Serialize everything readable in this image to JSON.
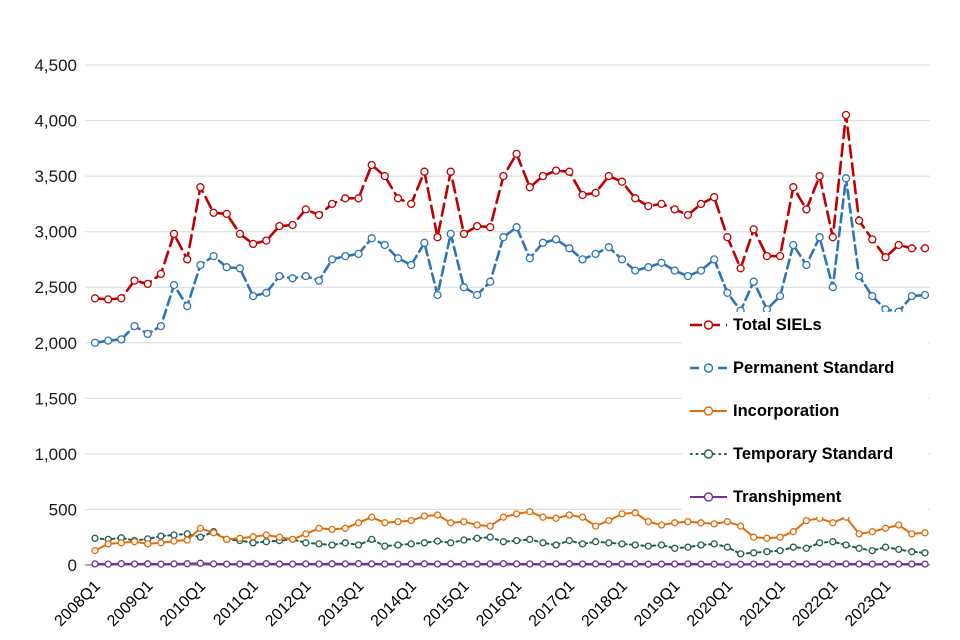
{
  "chart_data": {
    "type": "line",
    "title": "",
    "grid": true,
    "legend_position": "middle-right",
    "y_axis": {
      "min": 0,
      "max": 4500,
      "step": 500
    },
    "x_axis": {
      "tick_every": 4
    },
    "categories": [
      "2008Q1",
      "2008Q2",
      "2008Q3",
      "2008Q4",
      "2009Q1",
      "2009Q2",
      "2009Q3",
      "2009Q4",
      "2010Q1",
      "2010Q2",
      "2010Q3",
      "2010Q4",
      "2011Q1",
      "2011Q2",
      "2011Q3",
      "2011Q4",
      "2012Q1",
      "2012Q2",
      "2012Q3",
      "2012Q4",
      "2013Q1",
      "2013Q2",
      "2013Q3",
      "2013Q4",
      "2014Q1",
      "2014Q2",
      "2014Q3",
      "2014Q4",
      "2015Q1",
      "2015Q2",
      "2015Q3",
      "2015Q4",
      "2016Q1",
      "2016Q2",
      "2016Q3",
      "2016Q4",
      "2017Q1",
      "2017Q2",
      "2017Q3",
      "2017Q4",
      "2018Q1",
      "2018Q2",
      "2018Q3",
      "2018Q4",
      "2019Q1",
      "2019Q2",
      "2019Q3",
      "2019Q4",
      "2020Q1",
      "2020Q2",
      "2020Q3",
      "2020Q4",
      "2021Q1",
      "2021Q2",
      "2021Q3",
      "2021Q4",
      "2022Q1",
      "2022Q2",
      "2022Q3",
      "2022Q4",
      "2023Q1",
      "2023Q2",
      "2023Q3",
      "2023Q4"
    ],
    "series": [
      {
        "name": "Total SIELs",
        "color": "#C00000",
        "dash": "long-dash",
        "width": 2.6,
        "marker_r": 3.5,
        "values": [
          2400,
          2390,
          2400,
          2560,
          2530,
          2620,
          2980,
          2750,
          3400,
          3170,
          3160,
          2980,
          2890,
          2920,
          3050,
          3060,
          3200,
          3150,
          3250,
          3300,
          3300,
          3600,
          3500,
          3300,
          3250,
          3540,
          2950,
          3540,
          2980,
          3050,
          3040,
          3500,
          3700,
          3400,
          3500,
          3550,
          3540,
          3330,
          3350,
          3500,
          3450,
          3300,
          3230,
          3250,
          3200,
          3150,
          3250,
          3310,
          2950,
          2670,
          3020,
          2780,
          2780,
          3400,
          3200,
          3500,
          2950,
          4050,
          3100,
          2930,
          2770,
          2880,
          2850,
          2850
        ]
      },
      {
        "name": "Permanent Standard",
        "color": "#2E75B6",
        "dash": "dash",
        "width": 2.6,
        "marker_r": 3.5,
        "values": [
          2000,
          2020,
          2030,
          2150,
          2080,
          2150,
          2520,
          2330,
          2700,
          2780,
          2680,
          2670,
          2420,
          2450,
          2600,
          2580,
          2600,
          2560,
          2750,
          2780,
          2800,
          2940,
          2880,
          2760,
          2700,
          2900,
          2430,
          2980,
          2500,
          2430,
          2550,
          2950,
          3040,
          2760,
          2900,
          2930,
          2850,
          2750,
          2800,
          2860,
          2750,
          2650,
          2680,
          2720,
          2650,
          2600,
          2650,
          2750,
          2450,
          2290,
          2550,
          2300,
          2420,
          2880,
          2700,
          2950,
          2500,
          3480,
          2600,
          2420,
          2300,
          2280,
          2420,
          2430
        ]
      },
      {
        "name": "Incorporation",
        "color": "#E36C0A",
        "dash": "solid",
        "width": 2,
        "marker_r": 3,
        "values": [
          130,
          190,
          200,
          210,
          190,
          200,
          215,
          225,
          330,
          290,
          230,
          240,
          255,
          270,
          250,
          230,
          280,
          330,
          320,
          330,
          380,
          430,
          380,
          390,
          400,
          440,
          450,
          380,
          390,
          360,
          350,
          430,
          460,
          480,
          430,
          420,
          450,
          430,
          350,
          400,
          460,
          470,
          390,
          360,
          380,
          390,
          380,
          370,
          390,
          350,
          250,
          240,
          250,
          300,
          400,
          420,
          380,
          430,
          280,
          300,
          330,
          360,
          280,
          290
        ]
      },
      {
        "name": "Temporary Standard",
        "color": "#205E52",
        "dash": "dot",
        "width": 2,
        "marker_r": 3,
        "values": [
          240,
          230,
          245,
          220,
          235,
          260,
          270,
          280,
          250,
          300,
          230,
          220,
          200,
          210,
          220,
          230,
          200,
          190,
          180,
          200,
          180,
          230,
          170,
          180,
          190,
          200,
          215,
          200,
          225,
          240,
          250,
          210,
          220,
          230,
          200,
          180,
          220,
          190,
          210,
          200,
          190,
          180,
          170,
          180,
          150,
          160,
          180,
          190,
          160,
          100,
          110,
          120,
          130,
          160,
          150,
          200,
          210,
          180,
          150,
          130,
          160,
          140,
          120,
          110
        ]
      },
      {
        "name": "Transhipment",
        "color": "#7030A0",
        "dash": "solid",
        "width": 2,
        "marker_r": 3,
        "values": [
          10,
          8,
          12,
          9,
          11,
          7,
          10,
          12,
          15,
          10,
          8,
          9,
          10,
          12,
          9,
          8,
          10,
          9,
          11,
          10,
          12,
          10,
          9,
          8,
          10,
          11,
          9,
          10,
          8,
          9,
          10,
          12,
          10,
          9,
          8,
          10,
          11,
          9,
          10,
          8,
          9,
          10,
          7,
          8,
          9,
          10,
          8,
          7,
          5,
          6,
          8,
          7,
          6,
          8,
          9,
          7,
          8,
          10,
          9,
          8,
          7,
          8,
          9,
          8
        ]
      }
    ],
    "legend": {
      "items": [
        "Total SIELs",
        "Permanent Standard",
        "Incorporation",
        "Temporary Standard",
        "Transhipment"
      ]
    }
  }
}
